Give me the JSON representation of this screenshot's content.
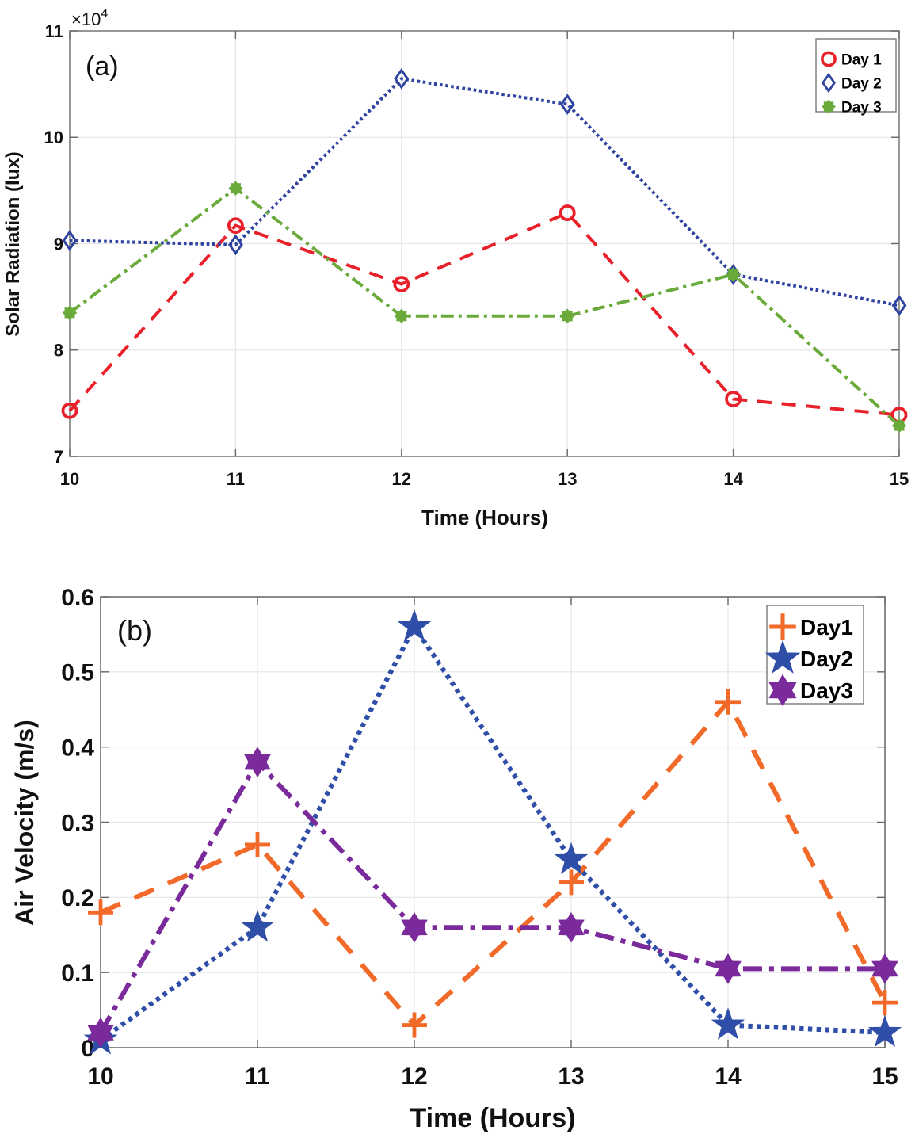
{
  "chart_data": [
    {
      "type": "line",
      "panel_label": "(a)",
      "title": "",
      "xlabel": "Time (Hours)",
      "ylabel": "Solar Radiation (lux)",
      "y_multiplier": "×10",
      "y_multiplier_exp": "4",
      "x": [
        10,
        11,
        12,
        13,
        14,
        15
      ],
      "xlim": [
        10,
        15
      ],
      "ylim": [
        7,
        11
      ],
      "xticks": [
        "10",
        "11",
        "12",
        "13",
        "14",
        "15"
      ],
      "yticks": [
        "7",
        "8",
        "9",
        "10",
        "11"
      ],
      "ytick_values": [
        7,
        8,
        9,
        10,
        11
      ],
      "grid": true,
      "legend_position": "top-right",
      "series": [
        {
          "name": "Day 1",
          "color": "#e8202a",
          "dash": "dashed",
          "marker": "circle",
          "values": [
            7.43,
            9.17,
            8.62,
            9.29,
            7.54,
            7.39
          ]
        },
        {
          "name": "Day 2",
          "color": "#2f44a0",
          "dash": "dotted",
          "marker": "diamond",
          "values": [
            9.03,
            8.99,
            10.55,
            10.31,
            8.71,
            8.42
          ]
        },
        {
          "name": "Day 3",
          "color": "#6aaa3a",
          "dash": "dash-dot",
          "marker": "asterisk",
          "values": [
            8.35,
            9.52,
            8.32,
            8.32,
            8.71,
            7.29
          ]
        }
      ]
    },
    {
      "type": "line",
      "panel_label": "(b)",
      "title": "",
      "xlabel": "Time (Hours)",
      "ylabel": "Air Velocity (m/s)",
      "x": [
        10,
        11,
        12,
        13,
        14,
        15
      ],
      "xlim": [
        10,
        15
      ],
      "ylim": [
        0,
        0.6
      ],
      "xticks": [
        "10",
        "11",
        "12",
        "13",
        "14",
        "15"
      ],
      "yticks": [
        "0",
        "0.1",
        "0.2",
        "0.3",
        "0.4",
        "0.5",
        "0.6"
      ],
      "ytick_values": [
        0,
        0.1,
        0.2,
        0.3,
        0.4,
        0.5,
        0.6
      ],
      "grid": true,
      "legend_position": "top-right",
      "series": [
        {
          "name": "Day1",
          "color": "#f26a2a",
          "dash": "dashed",
          "marker": "plus",
          "values": [
            0.18,
            0.27,
            0.03,
            0.22,
            0.46,
            0.06
          ]
        },
        {
          "name": "Day2",
          "color": "#2f4ea8",
          "dash": "dotted",
          "marker": "star",
          "values": [
            0.01,
            0.16,
            0.56,
            0.25,
            0.03,
            0.02
          ]
        },
        {
          "name": "Day3",
          "color": "#7a2a9a",
          "dash": "dash-dot",
          "marker": "hexagram",
          "values": [
            0.02,
            0.38,
            0.16,
            0.16,
            0.105,
            0.105
          ]
        }
      ]
    }
  ]
}
